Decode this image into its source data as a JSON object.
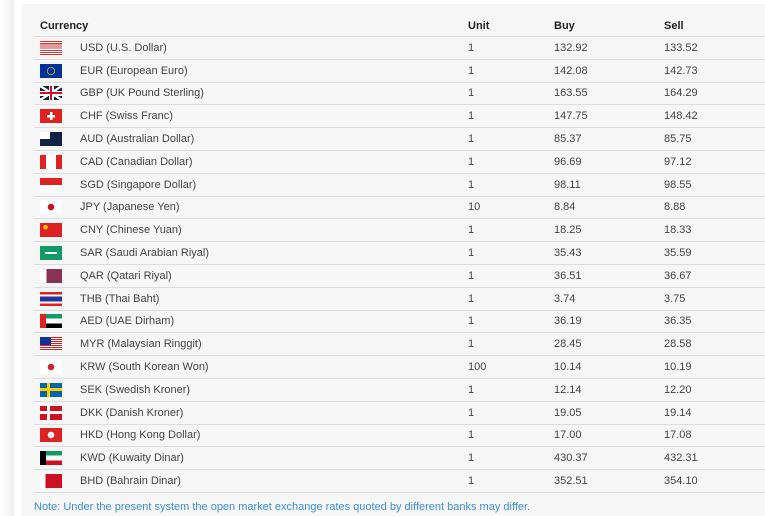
{
  "table": {
    "headers": {
      "currency": "Currency",
      "unit": "Unit",
      "buy": "Buy",
      "sell": "Sell"
    },
    "rows": [
      {
        "flag": "us",
        "currency": "USD (U.S. Dollar)",
        "unit": "1",
        "buy": "132.92",
        "sell": "133.52"
      },
      {
        "flag": "eu",
        "currency": "EUR (European Euro)",
        "unit": "1",
        "buy": "142.08",
        "sell": "142.73"
      },
      {
        "flag": "gb",
        "currency": "GBP (UK Pound Sterling)",
        "unit": "1",
        "buy": "163.55",
        "sell": "164.29"
      },
      {
        "flag": "ch",
        "currency": "CHF (Swiss Franc)",
        "unit": "1",
        "buy": "147.75",
        "sell": "148.42"
      },
      {
        "flag": "au",
        "currency": "AUD (Australian Dollar)",
        "unit": "1",
        "buy": "85.37",
        "sell": "85.75"
      },
      {
        "flag": "ca",
        "currency": "CAD (Canadian Dollar)",
        "unit": "1",
        "buy": "96.69",
        "sell": "97.12"
      },
      {
        "flag": "sg",
        "currency": "SGD (Singapore Dollar)",
        "unit": "1",
        "buy": "98.11",
        "sell": "98.55"
      },
      {
        "flag": "jp",
        "currency": "JPY (Japanese Yen)",
        "unit": "10",
        "buy": "8.84",
        "sell": "8.88"
      },
      {
        "flag": "cn",
        "currency": "CNY (Chinese Yuan)",
        "unit": "1",
        "buy": "18.25",
        "sell": "18.33"
      },
      {
        "flag": "sa",
        "currency": "SAR (Saudi Arabian Riyal)",
        "unit": "1",
        "buy": "35.43",
        "sell": "35.59"
      },
      {
        "flag": "qa",
        "currency": "QAR (Qatari Riyal)",
        "unit": "1",
        "buy": "36.51",
        "sell": "36.67"
      },
      {
        "flag": "th",
        "currency": "THB (Thai Baht)",
        "unit": "1",
        "buy": "3.74",
        "sell": "3.75"
      },
      {
        "flag": "ae",
        "currency": "AED (UAE Dirham)",
        "unit": "1",
        "buy": "36.19",
        "sell": "36.35"
      },
      {
        "flag": "my",
        "currency": "MYR (Malaysian Ringgit)",
        "unit": "1",
        "buy": "28.45",
        "sell": "28.58"
      },
      {
        "flag": "kr",
        "currency": "KRW (South Korean Won)",
        "unit": "100",
        "buy": "10.14",
        "sell": "10.19"
      },
      {
        "flag": "se",
        "currency": "SEK (Swedish Kroner)",
        "unit": "1",
        "buy": "12.14",
        "sell": "12.20"
      },
      {
        "flag": "dk",
        "currency": "DKK (Danish Kroner)",
        "unit": "1",
        "buy": "19.05",
        "sell": "19.14"
      },
      {
        "flag": "hk",
        "currency": "HKD (Hong Kong Dollar)",
        "unit": "1",
        "buy": "17.00",
        "sell": "17.08"
      },
      {
        "flag": "kw",
        "currency": "KWD (Kuwaity Dinar)",
        "unit": "1",
        "buy": "430.37",
        "sell": "432.31"
      },
      {
        "flag": "bh",
        "currency": "BHD (Bahrain Dinar)",
        "unit": "1",
        "buy": "352.51",
        "sell": "354.10"
      }
    ]
  },
  "note": "Note: Under the present system the open market exchange rates quoted by different banks may differ.",
  "colors": {
    "note": "#3b8fd6",
    "panel": "#f6f6f6"
  }
}
